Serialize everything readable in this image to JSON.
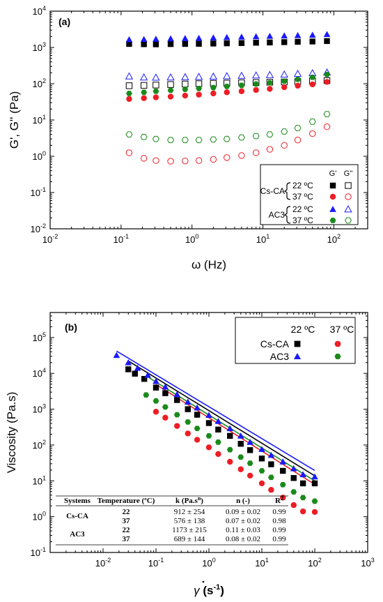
{
  "colors": {
    "black": "#000000",
    "red": "#ee1c24",
    "blue": "#1a1aff",
    "green": "#1a8a1a",
    "fit_black": "#000000",
    "fit_blue": "#1a1aff",
    "fit_green": "#1a8a1a",
    "fit_red": "#ee1c24"
  },
  "chart_data": [
    {
      "type": "scatter",
      "panel_label": "(a)",
      "xlabel": "ω (Hz)",
      "ylabel": "G', G'' (Pa)",
      "xscale": "log",
      "yscale": "log",
      "xlim": [
        0.01,
        300
      ],
      "ylim": [
        0.01,
        10000
      ],
      "xticks": [
        {
          "v": 0.01,
          "base": "10",
          "exp": "-2"
        },
        {
          "v": 0.1,
          "base": "10",
          "exp": "-1"
        },
        {
          "v": 1,
          "base": "10",
          "exp": "0"
        },
        {
          "v": 10,
          "base": "10",
          "exp": "1"
        },
        {
          "v": 100,
          "base": "10",
          "exp": "2"
        }
      ],
      "yticks": [
        {
          "v": 0.01,
          "base": "10",
          "exp": "-2"
        },
        {
          "v": 0.1,
          "base": "10",
          "exp": "-1"
        },
        {
          "v": 1,
          "base": "10",
          "exp": "0"
        },
        {
          "v": 10,
          "base": "10",
          "exp": "1"
        },
        {
          "v": 100,
          "base": "10",
          "exp": "2"
        },
        {
          "v": 1000,
          "base": "10",
          "exp": "3"
        },
        {
          "v": 10000,
          "base": "10",
          "exp": "4"
        }
      ],
      "x": [
        0.13,
        0.21,
        0.31,
        0.5,
        0.8,
        1.25,
        2.0,
        3.1,
        5.0,
        8.0,
        12.5,
        20,
        31,
        50,
        80
      ],
      "series": [
        {
          "system": "Cs-CA",
          "temperature": "22 ºC",
          "modulus": "G'",
          "marker": "square",
          "filled": true,
          "color": "#000000",
          "values": [
            1250,
            1230,
            1220,
            1240,
            1250,
            1260,
            1280,
            1300,
            1320,
            1350,
            1370,
            1400,
            1430,
            1460,
            1500
          ]
        },
        {
          "system": "Cs-CA",
          "temperature": "22 ºC",
          "modulus": "G''",
          "marker": "square",
          "filled": false,
          "color": "#000000",
          "values": [
            88,
            90,
            92,
            95,
            98,
            100,
            102,
            104,
            106,
            108,
            110,
            112,
            115,
            118,
            122
          ]
        },
        {
          "system": "Cs-CA",
          "temperature": "37 ºC",
          "modulus": "G'",
          "marker": "circle",
          "filled": true,
          "color": "#ee1c24",
          "values": [
            38,
            40,
            42,
            44,
            47,
            50,
            54,
            58,
            62,
            67,
            72,
            80,
            88,
            96,
            112
          ]
        },
        {
          "system": "Cs-CA",
          "temperature": "37 ºC",
          "modulus": "G''",
          "marker": "circle",
          "filled": false,
          "color": "#ee1c24",
          "values": [
            1.25,
            0.88,
            0.76,
            0.73,
            0.74,
            0.76,
            0.82,
            0.92,
            1.05,
            1.25,
            1.55,
            2.0,
            2.8,
            4.2,
            6.5
          ]
        },
        {
          "system": "AC3",
          "temperature": "22 ºC",
          "modulus": "G'",
          "marker": "triangle",
          "filled": true,
          "color": "#1a1aff",
          "values": [
            1650,
            1680,
            1700,
            1750,
            1780,
            1800,
            1850,
            1900,
            1950,
            2000,
            2050,
            2100,
            2150,
            2200,
            2300
          ]
        },
        {
          "system": "AC3",
          "temperature": "22 ºC",
          "modulus": "G''",
          "marker": "triangle",
          "filled": false,
          "color": "#1a1aff",
          "values": [
            160,
            150,
            148,
            150,
            152,
            155,
            158,
            162,
            166,
            170,
            175,
            180,
            188,
            196,
            205
          ]
        },
        {
          "system": "AC3",
          "temperature": "37 ºC",
          "modulus": "G'",
          "marker": "hexagon",
          "filled": true,
          "color": "#1a8a1a",
          "values": [
            54,
            58,
            62,
            66,
            70,
            74,
            78,
            84,
            90,
            98,
            106,
            118,
            132,
            150,
            180
          ]
        },
        {
          "system": "AC3",
          "temperature": "37 ºC",
          "modulus": "G''",
          "marker": "hexagon",
          "filled": false,
          "color": "#1a8a1a",
          "values": [
            4.0,
            3.4,
            3.0,
            2.8,
            2.8,
            2.8,
            2.9,
            3.0,
            3.3,
            3.6,
            4.0,
            4.8,
            6.0,
            9.0,
            14.5
          ]
        }
      ],
      "legend": {
        "position": "bottom-right",
        "col_headers": [
          "G'",
          "G''"
        ],
        "groups": [
          {
            "system": "Cs-CA",
            "rows": [
              "22 ºC",
              "37 ºC"
            ]
          },
          {
            "system": "AC3",
            "rows": [
              "22 ºC",
              "37 ºC"
            ]
          }
        ]
      }
    },
    {
      "type": "scatter",
      "panel_label": "(b)",
      "xlabel_base": "γ",
      "xlabel_unit": "s",
      "xlabel_unit_exp": "-1",
      "ylabel": "Viscosity (Pa.s)",
      "xscale": "log",
      "yscale": "log",
      "xlim": [
        0.001,
        1000
      ],
      "ylim": [
        0.1,
        500000
      ],
      "xticks": [
        {
          "v": 0.01,
          "base": "10",
          "exp": "-2"
        },
        {
          "v": 0.1,
          "base": "10",
          "exp": "-1"
        },
        {
          "v": 1,
          "base": "10",
          "exp": "0"
        },
        {
          "v": 10,
          "base": "10",
          "exp": "1"
        },
        {
          "v": 100,
          "base": "10",
          "exp": "2"
        },
        {
          "v": 1000,
          "base": "10",
          "exp": "3"
        }
      ],
      "yticks": [
        {
          "v": 0.1,
          "base": "10",
          "exp": "-1"
        },
        {
          "v": 1,
          "base": "10",
          "exp": "0"
        },
        {
          "v": 10,
          "base": "10",
          "exp": "1"
        },
        {
          "v": 100,
          "base": "10",
          "exp": "2"
        },
        {
          "v": 1000,
          "base": "10",
          "exp": "3"
        },
        {
          "v": 10000,
          "base": "10",
          "exp": "4"
        },
        {
          "v": 100000,
          "base": "10",
          "exp": "5"
        }
      ],
      "series": [
        {
          "system": "Cs-CA",
          "temperature": "22 ºC",
          "marker": "square",
          "color": "#000000",
          "x": [
            0.03,
            0.04,
            0.06,
            0.1,
            0.15,
            0.25,
            0.4,
            0.6,
            1.0,
            1.5,
            2.5,
            4,
            6,
            10,
            15,
            25,
            40,
            60,
            100
          ],
          "values": [
            13000,
            9800,
            7000,
            4000,
            2800,
            1800,
            1000,
            700,
            410,
            270,
            180,
            108,
            72,
            42,
            29,
            19,
            12,
            8.5,
            8.5
          ]
        },
        {
          "system": "AC3",
          "temperature": "22 ºC",
          "marker": "triangle",
          "color": "#1a1aff",
          "x": [
            0.018,
            0.03,
            0.045,
            0.07,
            0.1,
            0.15,
            0.25,
            0.4,
            0.6,
            1.0,
            1.5,
            2.5,
            4,
            6,
            10,
            15,
            25,
            40,
            60,
            100
          ],
          "values": [
            32000,
            20000,
            14000,
            9000,
            6000,
            4200,
            2600,
            1600,
            1100,
            680,
            460,
            290,
            180,
            120,
            76,
            52,
            34,
            22,
            15,
            13
          ]
        },
        {
          "system": "Cs-CA",
          "temperature": "37 ºC",
          "marker": "circle",
          "color": "#ee1c24",
          "x": [
            0.1,
            0.15,
            0.25,
            0.4,
            0.6,
            1.0,
            1.5,
            2.5,
            4,
            6,
            10,
            15,
            25,
            40,
            60,
            100
          ],
          "values": [
            850,
            580,
            340,
            210,
            140,
            86,
            56,
            34,
            21,
            14,
            8.5,
            5.6,
            3.4,
            2.1,
            1.4,
            1.35
          ]
        },
        {
          "system": "AC3",
          "temperature": "37 ºC",
          "marker": "hexagon",
          "color": "#1a8a1a",
          "x": [
            0.065,
            0.1,
            0.15,
            0.25,
            0.4,
            0.6,
            1.0,
            1.5,
            2.5,
            4,
            6,
            10,
            15,
            25,
            40,
            60,
            100
          ],
          "values": [
            2500,
            1700,
            1150,
            700,
            440,
            290,
            180,
            120,
            74,
            46,
            31,
            19,
            12.5,
            7.8,
            4.9,
            3.4,
            2.7
          ]
        }
      ],
      "fits": [
        {
          "color": "#000000",
          "k": 912,
          "n": 0.09,
          "x_range": [
            0.03,
            100
          ]
        },
        {
          "color": "#1a1aff",
          "k": 1173,
          "n": 0.11,
          "x_range": [
            0.018,
            100
          ]
        },
        {
          "color": "#1a8a1a",
          "k": 689,
          "n": 0.08,
          "x_range": [
            0.065,
            100
          ]
        },
        {
          "color": "#ee1c24",
          "k": 576,
          "n": 0.07,
          "x_range": [
            0.1,
            100
          ]
        }
      ],
      "legend": {
        "position": "top-right",
        "col_headers": [
          "22 ºC",
          "37 ºC"
        ],
        "rows": [
          {
            "label": "Cs-CA",
            "markers": [
              "square",
              "circle"
            ],
            "colors": [
              "#000000",
              "#ee1c24"
            ]
          },
          {
            "label": "AC3",
            "markers": [
              "triangle",
              "hexagon"
            ],
            "colors": [
              "#1a1aff",
              "#1a8a1a"
            ]
          }
        ]
      },
      "table": {
        "headers": [
          "Systems",
          "Temperature (ºC)",
          "k (Pa.s",
          "n (-)",
          "R"
        ],
        "header_k_sup": "n",
        "header_k_tail": ")",
        "header_r_sup": "2",
        "rows": [
          {
            "system": "Cs-CA",
            "temp": "22",
            "k": "912 ± 254",
            "n": "0.09 ± 0.02",
            "r2": "0.99"
          },
          {
            "system": "",
            "temp": "37",
            "k": "576 ± 138",
            "n": "0.07 ± 0.02",
            "r2": "0.98"
          },
          {
            "system": "AC3",
            "temp": "22",
            "k": "1173 ± 215",
            "n": "0.11 ± 0.03",
            "r2": "0.99"
          },
          {
            "system": "",
            "temp": "37",
            "k": "689 ± 144",
            "n": "0.08 ± 0.02",
            "r2": "0.99"
          }
        ]
      }
    }
  ]
}
